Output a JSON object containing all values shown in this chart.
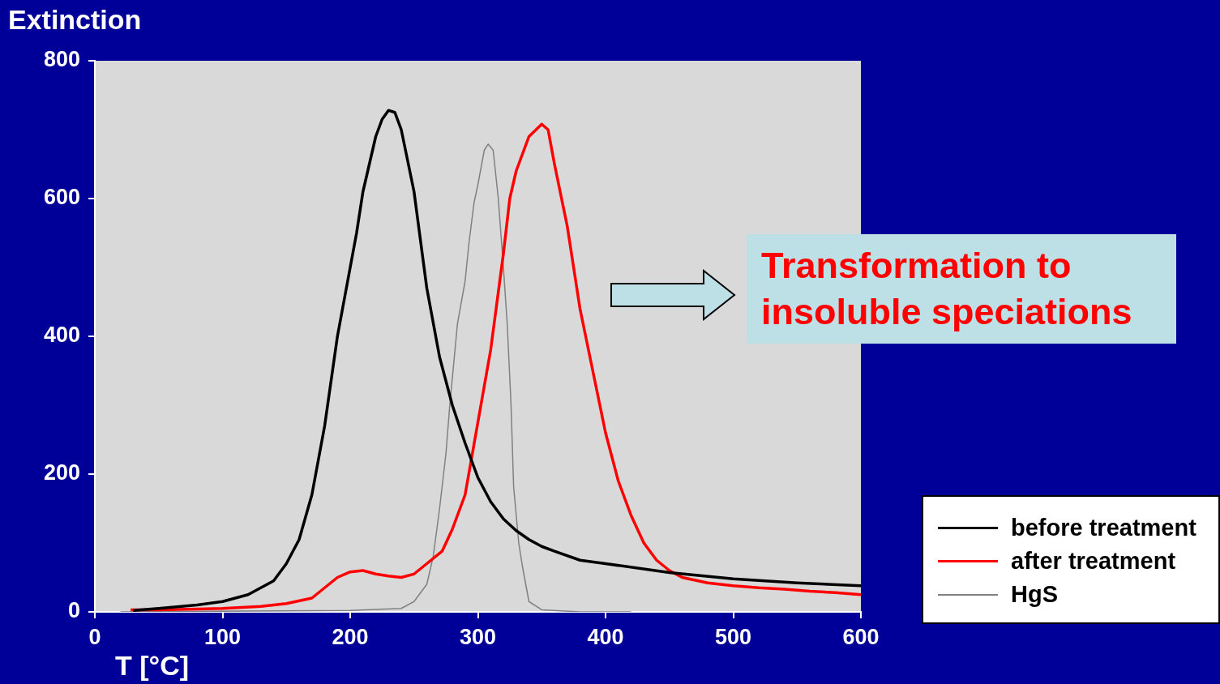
{
  "chart_data": {
    "type": "line",
    "ylabel": "Extinction",
    "xlabel": "T [°C]",
    "xlim": [
      0,
      600
    ],
    "xticks": [
      0,
      100,
      200,
      300,
      400,
      500,
      600
    ],
    "ylim": [
      0,
      800
    ],
    "yticks": [
      0,
      200,
      400,
      600,
      800
    ],
    "grid": false,
    "legend": "bottom right",
    "marker": "none",
    "annotations": [
      "Transformation to insoluble speciations"
    ],
    "series": [
      {
        "name": "before treatment",
        "color": "#000000",
        "x": [
          30,
          50,
          80,
          100,
          120,
          140,
          150,
          160,
          170,
          180,
          190,
          200,
          205,
          210,
          220,
          225,
          230,
          235,
          240,
          250,
          260,
          270,
          280,
          290,
          300,
          310,
          320,
          330,
          340,
          350,
          360,
          380,
          400,
          450,
          500,
          550,
          600
        ],
        "values": [
          2,
          5,
          10,
          15,
          25,
          45,
          70,
          105,
          170,
          270,
          400,
          500,
          550,
          610,
          690,
          715,
          728,
          725,
          700,
          610,
          470,
          370,
          300,
          245,
          195,
          160,
          135,
          118,
          105,
          95,
          88,
          75,
          70,
          57,
          48,
          42,
          38
        ]
      },
      {
        "name": "after treatment",
        "color": "#ff0000",
        "x": [
          28,
          50,
          100,
          130,
          150,
          170,
          180,
          190,
          200,
          210,
          220,
          230,
          240,
          250,
          260,
          272,
          280,
          290,
          300,
          310,
          320,
          325,
          330,
          340,
          350,
          355,
          360,
          370,
          380,
          390,
          400,
          410,
          420,
          430,
          440,
          450,
          460,
          480,
          500,
          520,
          540,
          560,
          580,
          600
        ],
        "values": [
          3,
          3,
          5,
          8,
          12,
          20,
          35,
          50,
          58,
          60,
          55,
          52,
          50,
          55,
          70,
          88,
          120,
          170,
          275,
          380,
          520,
          600,
          640,
          690,
          708,
          700,
          650,
          560,
          440,
          350,
          260,
          190,
          140,
          100,
          75,
          60,
          50,
          42,
          38,
          35,
          33,
          30,
          28,
          25
        ]
      },
      {
        "name": "HgS",
        "color": "#808080",
        "x": [
          20,
          200,
          240,
          250,
          260,
          265,
          270,
          275,
          278,
          284,
          290,
          293,
          297,
          300,
          305,
          308,
          312,
          316,
          320,
          323,
          326,
          328,
          332,
          335,
          340,
          350,
          380,
          420
        ],
        "values": [
          0,
          2,
          5,
          15,
          40,
          80,
          150,
          230,
          300,
          418,
          480,
          535,
          594,
          620,
          670,
          679,
          670,
          600,
          500,
          418,
          300,
          182,
          100,
          65,
          15,
          3,
          0,
          0
        ]
      }
    ]
  }
}
